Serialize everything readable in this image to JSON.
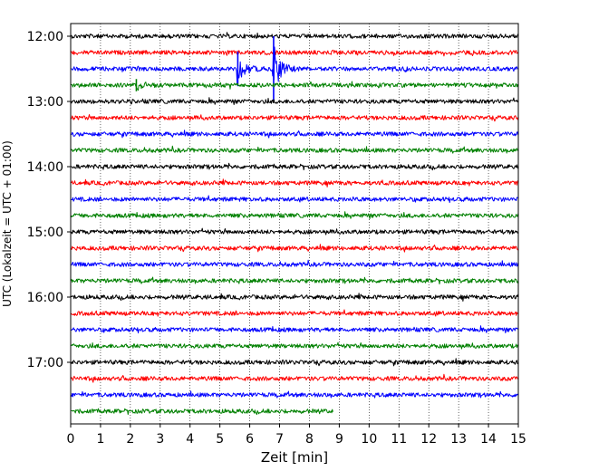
{
  "chart_data": {
    "type": "line",
    "title": "",
    "xlabel": "Zeit  [min]",
    "ylabel": "UTC (Lokalzeit = UTC + 01:00)",
    "xlim": [
      0,
      15
    ],
    "x_ticks": [
      0,
      1,
      2,
      3,
      4,
      5,
      6,
      7,
      8,
      9,
      10,
      11,
      12,
      13,
      14,
      15
    ],
    "x_tick_labels": [
      "0",
      "1",
      "2",
      "3",
      "4",
      "5",
      "6",
      "7",
      "8",
      "9",
      "10",
      "11",
      "12",
      "13",
      "14",
      "15"
    ],
    "y_ticks": [
      "12:00",
      "13:00",
      "14:00",
      "15:00",
      "16:00",
      "17:00"
    ],
    "grid": "vertical dotted",
    "trace_interval_minutes": 15,
    "color_cycle": [
      "#000000",
      "#ff0000",
      "#0000ff",
      "#008000"
    ],
    "traces": [
      {
        "start": "12:00",
        "color": "#000000",
        "end_min": 15
      },
      {
        "start": "12:15",
        "color": "#ff0000",
        "end_min": 15
      },
      {
        "start": "12:30",
        "color": "#0000ff",
        "end_min": 15,
        "events": [
          {
            "t": 5.6,
            "amp": 0.85
          },
          {
            "t": 6.8,
            "amp": 1.6
          }
        ]
      },
      {
        "start": "12:45",
        "color": "#008000",
        "end_min": 15,
        "events": [
          {
            "t": 2.2,
            "amp": 0.3
          }
        ]
      },
      {
        "start": "13:00",
        "color": "#000000",
        "end_min": 15
      },
      {
        "start": "13:15",
        "color": "#ff0000",
        "end_min": 15
      },
      {
        "start": "13:30",
        "color": "#0000ff",
        "end_min": 15
      },
      {
        "start": "13:45",
        "color": "#008000",
        "end_min": 15
      },
      {
        "start": "14:00",
        "color": "#000000",
        "end_min": 15
      },
      {
        "start": "14:15",
        "color": "#ff0000",
        "end_min": 15
      },
      {
        "start": "14:30",
        "color": "#0000ff",
        "end_min": 15
      },
      {
        "start": "14:45",
        "color": "#008000",
        "end_min": 15
      },
      {
        "start": "15:00",
        "color": "#000000",
        "end_min": 15
      },
      {
        "start": "15:15",
        "color": "#ff0000",
        "end_min": 15
      },
      {
        "start": "15:30",
        "color": "#0000ff",
        "end_min": 15
      },
      {
        "start": "15:45",
        "color": "#008000",
        "end_min": 15
      },
      {
        "start": "16:00",
        "color": "#000000",
        "end_min": 15
      },
      {
        "start": "16:15",
        "color": "#ff0000",
        "end_min": 15
      },
      {
        "start": "16:30",
        "color": "#0000ff",
        "end_min": 15
      },
      {
        "start": "16:45",
        "color": "#008000",
        "end_min": 15
      },
      {
        "start": "17:00",
        "color": "#000000",
        "end_min": 15
      },
      {
        "start": "17:15",
        "color": "#ff0000",
        "end_min": 15
      },
      {
        "start": "17:30",
        "color": "#0000ff",
        "end_min": 15
      },
      {
        "start": "17:45",
        "color": "#008000",
        "end_min": 8.8
      }
    ]
  }
}
